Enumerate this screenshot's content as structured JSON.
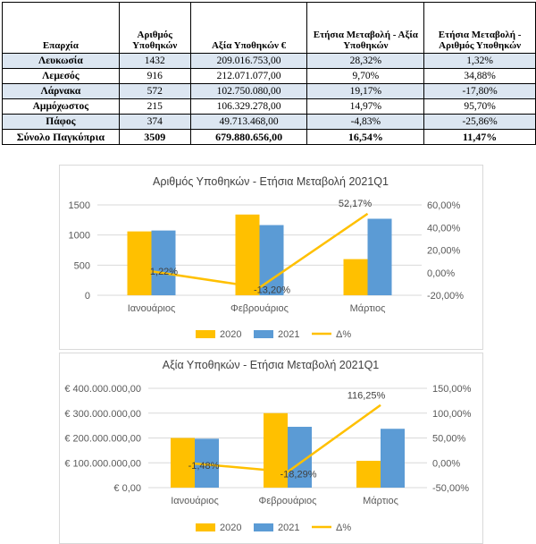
{
  "table": {
    "headers": [
      "Επαρχία",
      "Αριθμός Υποθηκών",
      "Αξία Υποθηκών €",
      "Ετήσια Μεταβολή - Αξία Υποθηκών",
      "Ετήσια Μεταβολή - Αριθμός Υποθηκών"
    ],
    "rows": [
      [
        "Λευκωσία",
        "1432",
        "209.016.753,00",
        "28,32%",
        "1,32%"
      ],
      [
        "Λεμεσός",
        "916",
        "212.071.077,00",
        "9,70%",
        "34,88%"
      ],
      [
        "Λάρνακα",
        "572",
        "102.750.080,00",
        "19,17%",
        "-17,80%"
      ],
      [
        "Αμμόχωστος",
        "215",
        "106.329.278,00",
        "14,97%",
        "95,70%"
      ],
      [
        "Πάφος",
        "374",
        "49.713.468,00",
        "-4,83%",
        "-25,86%"
      ]
    ],
    "total": [
      "Σύνολο Παγκύπρια",
      "3509",
      "679.880.656,00",
      "16,54%",
      "11,47%"
    ]
  },
  "chart_data": [
    {
      "type": "bar",
      "title": "Αριθμός Υποθηκών - Ετήσια Μεταβολή 2021Q1",
      "categories": [
        "Ιανουάριος",
        "Φεβρουάριος",
        "Μάρτιος"
      ],
      "series": [
        {
          "name": "2020",
          "type": "bar",
          "axis": "left",
          "color": "#ffc000",
          "values": [
            1060,
            1340,
            600
          ]
        },
        {
          "name": "2021",
          "type": "bar",
          "axis": "left",
          "color": "#5b9bd5",
          "values": [
            1075,
            1165,
            1270
          ]
        },
        {
          "name": "Δ%",
          "type": "line",
          "axis": "right",
          "color": "#ffc000",
          "values": [
            1.22,
            -13.2,
            52.17
          ]
        }
      ],
      "data_labels": [
        "1,22%",
        "-13,20%",
        "52,17%"
      ],
      "ylim_left": [
        0,
        1500
      ],
      "left_ticks": [
        "0",
        "500",
        "1000",
        "1500"
      ],
      "ylim_right": [
        -20,
        60
      ],
      "right_ticks": [
        "-20,00%",
        "0,00%",
        "20,00%",
        "40,00%",
        "60,00%"
      ],
      "legend": "bottom"
    },
    {
      "type": "bar",
      "title": "Αξία Υποθηκών - Ετήσια Μεταβολή 2021Q1",
      "categories": [
        "Ιανουάριος",
        "Φεβρουάριος",
        "Μάρτιος"
      ],
      "series": [
        {
          "name": "2020",
          "type": "bar",
          "axis": "left",
          "color": "#ffc000",
          "values": [
            200000000,
            300000000,
            108000000
          ]
        },
        {
          "name": "2021",
          "type": "bar",
          "axis": "left",
          "color": "#5b9bd5",
          "values": [
            197000000,
            245000000,
            237000000
          ]
        },
        {
          "name": "Δ%",
          "type": "line",
          "axis": "right",
          "color": "#ffc000",
          "values": [
            -1.48,
            -18.29,
            116.25
          ]
        }
      ],
      "data_labels": [
        "-1,48%",
        "-18,29%",
        "116,25%"
      ],
      "ylim_left": [
        0,
        400000000
      ],
      "left_ticks": [
        "€ 0,00",
        "€ 100.000.000,00",
        "€ 200.000.000,00",
        "€ 300.000.000,00",
        "€ 400.000.000,00"
      ],
      "ylim_right": [
        -50,
        150
      ],
      "right_ticks": [
        "-50,00%",
        "0,00%",
        "50,00%",
        "100,00%",
        "150,00%"
      ],
      "legend": "bottom"
    }
  ]
}
